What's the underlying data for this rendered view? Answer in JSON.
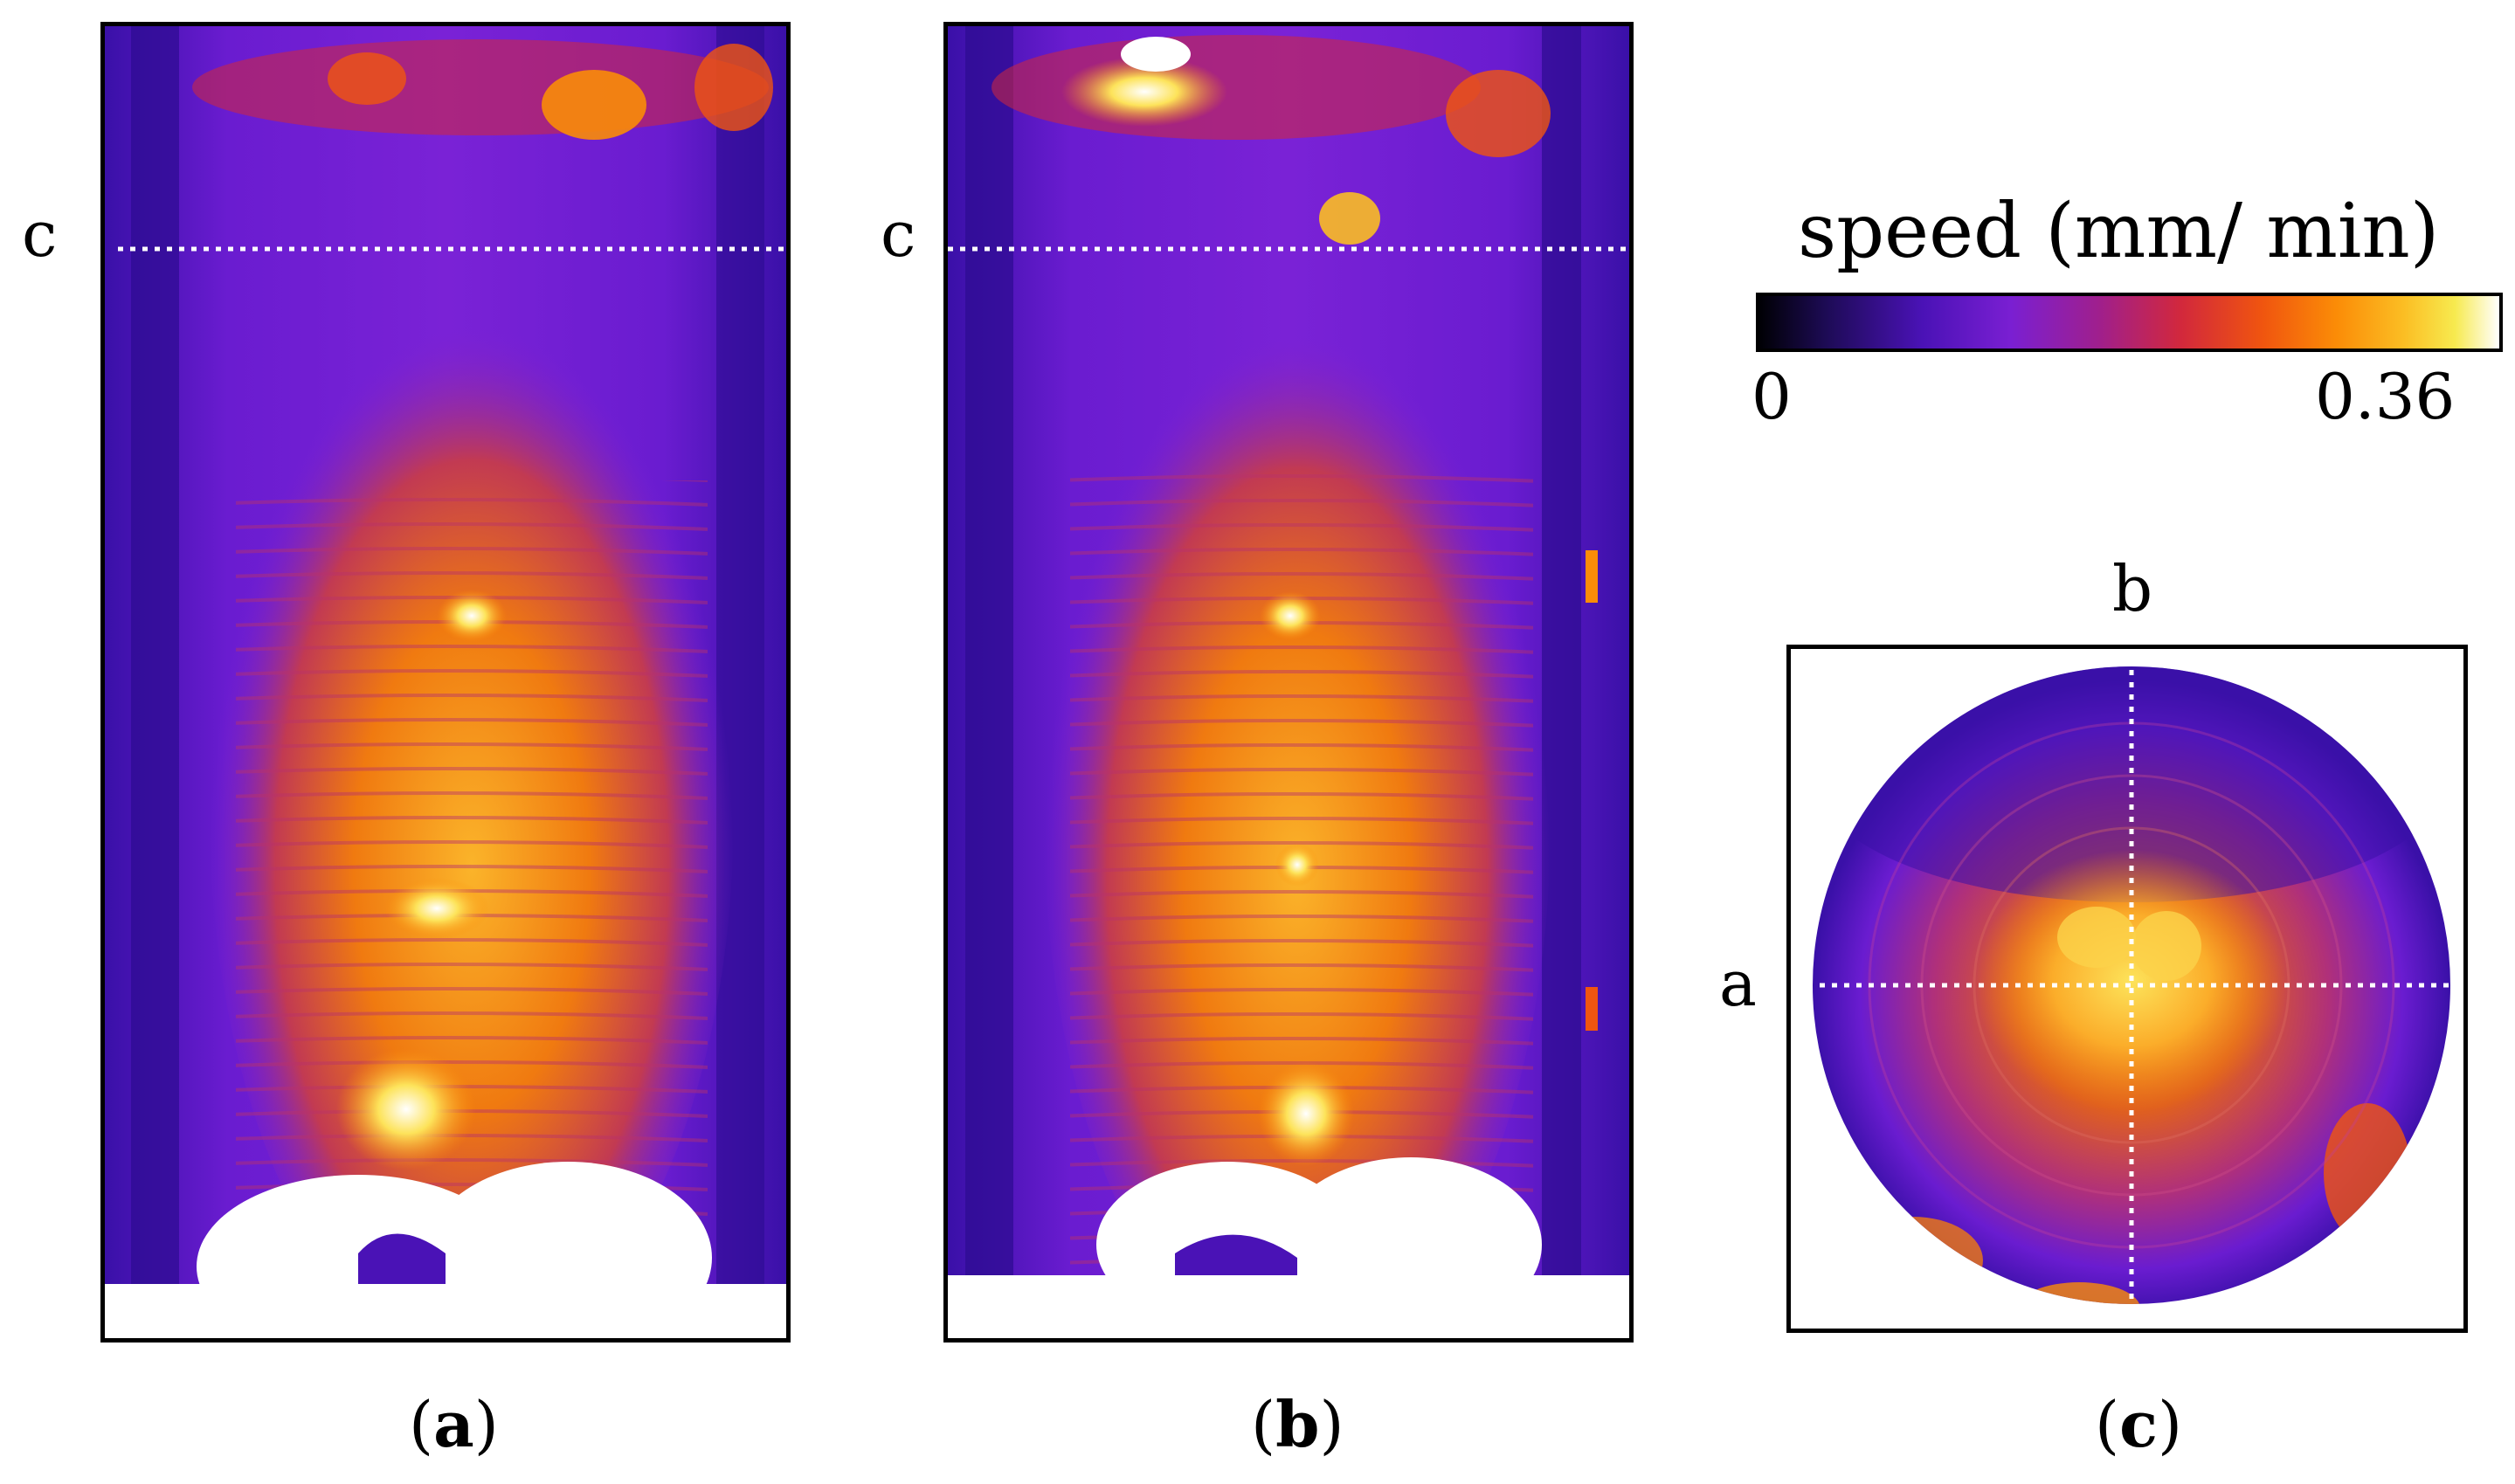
{
  "panels": {
    "a": {
      "caption_letter": "a",
      "line_label": "c"
    },
    "b": {
      "caption_letter": "b",
      "line_label": "c"
    },
    "c": {
      "caption_letter": "c",
      "top_label": "b",
      "left_label": "a"
    }
  },
  "colorbar": {
    "title": "speed (mm/ min)",
    "min_label": "0",
    "max_label": "0.36",
    "min": 0,
    "max": 0.36,
    "colormap": "inferno-like (black → purple → orange → yellow → white)"
  },
  "paren_open": "(",
  "paren_close": ")",
  "colors": {
    "ink": "#000000",
    "guide_line": "#ffffff",
    "low": "#4a12b6",
    "mid": "#fb8c07",
    "high": "#ffffff"
  }
}
